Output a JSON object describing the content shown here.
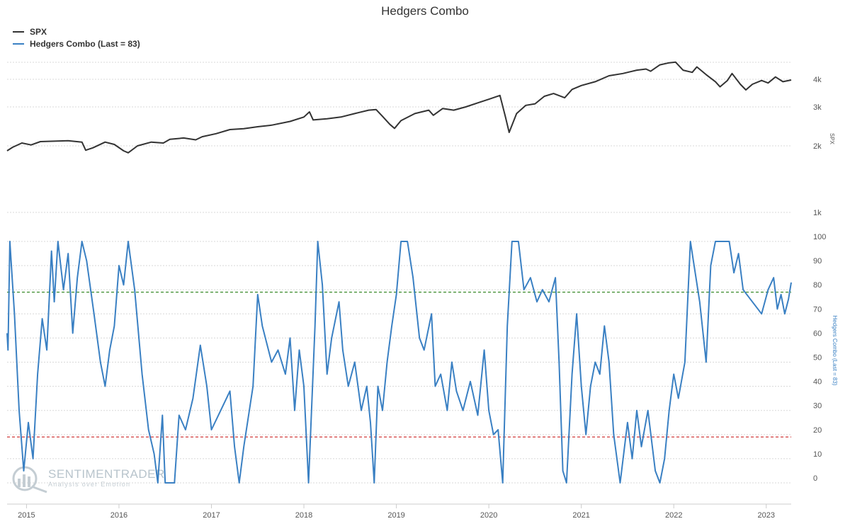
{
  "colors": {
    "spx": "#333333",
    "hedgers": "#3a80c3",
    "upper_threshold": "#3a8a2a",
    "lower_threshold": "#cc2222",
    "grid": "#d8d8d8",
    "text": "#555555",
    "watermark": "#b8c4cc"
  },
  "watermark": {
    "brand": "SENTIMENTRADER",
    "tagline": "Analysis over Emotion"
  },
  "chart_data": {
    "type": "line",
    "title": "Hedgers Combo",
    "legend_position": "top-left",
    "grid": true,
    "x_ticks": [
      "2015",
      "2016",
      "2017",
      "2018",
      "2019",
      "2020",
      "2021",
      "2022",
      "2023"
    ],
    "x_range": [
      2014.79,
      2023.27
    ],
    "series": [
      {
        "name": "SPX",
        "y_axis": "top",
        "y_label": "SPX",
        "y_scale": "log",
        "y_ticks": [
          {
            "value": 1000,
            "label": "1k"
          },
          {
            "value": 2000,
            "label": "2k"
          },
          {
            "value": 3000,
            "label": "3k"
          },
          {
            "value": 4000,
            "label": "4k"
          }
        ],
        "points": [
          [
            2014.79,
            1900
          ],
          [
            2014.85,
            1970
          ],
          [
            2014.95,
            2060
          ],
          [
            2015.05,
            2020
          ],
          [
            2015.15,
            2090
          ],
          [
            2015.3,
            2100
          ],
          [
            2015.45,
            2110
          ],
          [
            2015.6,
            2080
          ],
          [
            2015.64,
            1910
          ],
          [
            2015.72,
            1960
          ],
          [
            2015.85,
            2080
          ],
          [
            2015.95,
            2030
          ],
          [
            2016.05,
            1900
          ],
          [
            2016.1,
            1860
          ],
          [
            2016.2,
            2000
          ],
          [
            2016.35,
            2080
          ],
          [
            2016.48,
            2060
          ],
          [
            2016.55,
            2140
          ],
          [
            2016.7,
            2170
          ],
          [
            2016.83,
            2130
          ],
          [
            2016.9,
            2200
          ],
          [
            2017.05,
            2270
          ],
          [
            2017.2,
            2370
          ],
          [
            2017.35,
            2390
          ],
          [
            2017.5,
            2440
          ],
          [
            2017.65,
            2480
          ],
          [
            2017.85,
            2580
          ],
          [
            2018.0,
            2700
          ],
          [
            2018.06,
            2850
          ],
          [
            2018.1,
            2620
          ],
          [
            2018.25,
            2650
          ],
          [
            2018.4,
            2700
          ],
          [
            2018.55,
            2800
          ],
          [
            2018.7,
            2900
          ],
          [
            2018.78,
            2920
          ],
          [
            2018.85,
            2720
          ],
          [
            2018.93,
            2500
          ],
          [
            2018.98,
            2400
          ],
          [
            2019.05,
            2600
          ],
          [
            2019.2,
            2800
          ],
          [
            2019.35,
            2900
          ],
          [
            2019.4,
            2750
          ],
          [
            2019.5,
            2950
          ],
          [
            2019.62,
            2900
          ],
          [
            2019.75,
            3000
          ],
          [
            2019.9,
            3150
          ],
          [
            2020.0,
            3250
          ],
          [
            2020.12,
            3380
          ],
          [
            2020.18,
            2700
          ],
          [
            2020.22,
            2300
          ],
          [
            2020.3,
            2800
          ],
          [
            2020.4,
            3050
          ],
          [
            2020.5,
            3100
          ],
          [
            2020.6,
            3350
          ],
          [
            2020.7,
            3450
          ],
          [
            2020.82,
            3300
          ],
          [
            2020.9,
            3600
          ],
          [
            2021.0,
            3750
          ],
          [
            2021.15,
            3900
          ],
          [
            2021.3,
            4150
          ],
          [
            2021.45,
            4250
          ],
          [
            2021.6,
            4400
          ],
          [
            2021.7,
            4450
          ],
          [
            2021.75,
            4350
          ],
          [
            2021.85,
            4650
          ],
          [
            2021.95,
            4750
          ],
          [
            2022.02,
            4780
          ],
          [
            2022.1,
            4400
          ],
          [
            2022.2,
            4300
          ],
          [
            2022.25,
            4550
          ],
          [
            2022.35,
            4200
          ],
          [
            2022.45,
            3900
          ],
          [
            2022.5,
            3700
          ],
          [
            2022.58,
            3950
          ],
          [
            2022.63,
            4250
          ],
          [
            2022.72,
            3800
          ],
          [
            2022.78,
            3580
          ],
          [
            2022.85,
            3800
          ],
          [
            2022.95,
            3950
          ],
          [
            2023.02,
            3850
          ],
          [
            2023.1,
            4100
          ],
          [
            2023.18,
            3900
          ],
          [
            2023.27,
            3970
          ]
        ]
      },
      {
        "name": "Hedgers Combo (Last = 83)",
        "y_axis": "bottom",
        "y_label": "Hedgers Combo (Last = 83)",
        "ylim": [
          0,
          100
        ],
        "y_ticks": [
          0,
          10,
          20,
          30,
          40,
          50,
          60,
          70,
          80,
          90,
          100
        ],
        "thresholds": [
          {
            "value": 79,
            "style": "upper"
          },
          {
            "value": 19,
            "style": "lower"
          }
        ],
        "points": [
          [
            2014.79,
            62
          ],
          [
            2014.8,
            55
          ],
          [
            2014.82,
            100
          ],
          [
            2014.87,
            70
          ],
          [
            2014.92,
            30
          ],
          [
            2014.97,
            5
          ],
          [
            2015.02,
            25
          ],
          [
            2015.07,
            10
          ],
          [
            2015.12,
            45
          ],
          [
            2015.17,
            68
          ],
          [
            2015.22,
            55
          ],
          [
            2015.27,
            96
          ],
          [
            2015.3,
            75
          ],
          [
            2015.34,
            100
          ],
          [
            2015.4,
            80
          ],
          [
            2015.45,
            95
          ],
          [
            2015.5,
            62
          ],
          [
            2015.55,
            85
          ],
          [
            2015.6,
            100
          ],
          [
            2015.65,
            92
          ],
          [
            2015.73,
            70
          ],
          [
            2015.8,
            50
          ],
          [
            2015.85,
            40
          ],
          [
            2015.9,
            55
          ],
          [
            2015.95,
            65
          ],
          [
            2016.0,
            90
          ],
          [
            2016.05,
            82
          ],
          [
            2016.1,
            100
          ],
          [
            2016.17,
            80
          ],
          [
            2016.25,
            45
          ],
          [
            2016.32,
            22
          ],
          [
            2016.38,
            12
          ],
          [
            2016.42,
            0
          ],
          [
            2016.47,
            28
          ],
          [
            2016.5,
            0
          ],
          [
            2016.6,
            0
          ],
          [
            2016.65,
            28
          ],
          [
            2016.72,
            22
          ],
          [
            2016.8,
            35
          ],
          [
            2016.88,
            57
          ],
          [
            2016.95,
            40
          ],
          [
            2017.0,
            22
          ],
          [
            2017.1,
            30
          ],
          [
            2017.2,
            38
          ],
          [
            2017.25,
            15
          ],
          [
            2017.3,
            0
          ],
          [
            2017.35,
            15
          ],
          [
            2017.45,
            40
          ],
          [
            2017.5,
            78
          ],
          [
            2017.55,
            65
          ],
          [
            2017.65,
            50
          ],
          [
            2017.72,
            55
          ],
          [
            2017.8,
            45
          ],
          [
            2017.85,
            60
          ],
          [
            2017.9,
            30
          ],
          [
            2017.95,
            55
          ],
          [
            2018.0,
            40
          ],
          [
            2018.05,
            0
          ],
          [
            2018.12,
            65
          ],
          [
            2018.15,
            100
          ],
          [
            2018.2,
            82
          ],
          [
            2018.25,
            45
          ],
          [
            2018.3,
            60
          ],
          [
            2018.38,
            75
          ],
          [
            2018.42,
            55
          ],
          [
            2018.48,
            40
          ],
          [
            2018.55,
            50
          ],
          [
            2018.62,
            30
          ],
          [
            2018.68,
            40
          ],
          [
            2018.72,
            25
          ],
          [
            2018.76,
            0
          ],
          [
            2018.8,
            40
          ],
          [
            2018.85,
            30
          ],
          [
            2018.9,
            50
          ],
          [
            2018.95,
            65
          ],
          [
            2019.0,
            78
          ],
          [
            2019.05,
            100
          ],
          [
            2019.12,
            100
          ],
          [
            2019.18,
            85
          ],
          [
            2019.25,
            60
          ],
          [
            2019.3,
            55
          ],
          [
            2019.38,
            70
          ],
          [
            2019.42,
            40
          ],
          [
            2019.48,
            45
          ],
          [
            2019.55,
            30
          ],
          [
            2019.6,
            50
          ],
          [
            2019.65,
            38
          ],
          [
            2019.72,
            30
          ],
          [
            2019.8,
            42
          ],
          [
            2019.88,
            28
          ],
          [
            2019.95,
            55
          ],
          [
            2020.0,
            30
          ],
          [
            2020.05,
            20
          ],
          [
            2020.1,
            22
          ],
          [
            2020.15,
            0
          ],
          [
            2020.2,
            65
          ],
          [
            2020.25,
            100
          ],
          [
            2020.32,
            100
          ],
          [
            2020.38,
            80
          ],
          [
            2020.45,
            85
          ],
          [
            2020.52,
            75
          ],
          [
            2020.58,
            80
          ],
          [
            2020.65,
            75
          ],
          [
            2020.72,
            85
          ],
          [
            2020.76,
            50
          ],
          [
            2020.8,
            5
          ],
          [
            2020.84,
            0
          ],
          [
            2020.9,
            45
          ],
          [
            2020.95,
            70
          ],
          [
            2021.0,
            40
          ],
          [
            2021.05,
            20
          ],
          [
            2021.1,
            40
          ],
          [
            2021.15,
            50
          ],
          [
            2021.2,
            45
          ],
          [
            2021.25,
            65
          ],
          [
            2021.3,
            50
          ],
          [
            2021.35,
            20
          ],
          [
            2021.42,
            0
          ],
          [
            2021.5,
            25
          ],
          [
            2021.55,
            10
          ],
          [
            2021.6,
            30
          ],
          [
            2021.65,
            15
          ],
          [
            2021.72,
            30
          ],
          [
            2021.8,
            5
          ],
          [
            2021.85,
            0
          ],
          [
            2021.9,
            10
          ],
          [
            2021.95,
            30
          ],
          [
            2022.0,
            45
          ],
          [
            2022.05,
            35
          ],
          [
            2022.12,
            50
          ],
          [
            2022.18,
            100
          ],
          [
            2022.22,
            90
          ],
          [
            2022.28,
            75
          ],
          [
            2022.35,
            50
          ],
          [
            2022.4,
            90
          ],
          [
            2022.45,
            100
          ],
          [
            2022.6,
            100
          ],
          [
            2022.65,
            87
          ],
          [
            2022.7,
            95
          ],
          [
            2022.75,
            80
          ],
          [
            2022.85,
            75
          ],
          [
            2022.95,
            70
          ],
          [
            2023.02,
            80
          ],
          [
            2023.08,
            85
          ],
          [
            2023.12,
            72
          ],
          [
            2023.16,
            78
          ],
          [
            2023.2,
            70
          ],
          [
            2023.24,
            76
          ],
          [
            2023.27,
            83
          ]
        ]
      }
    ]
  }
}
